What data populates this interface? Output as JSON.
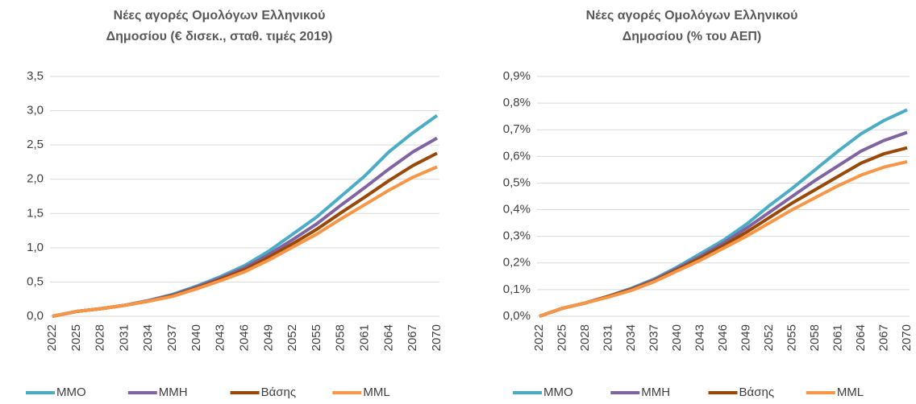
{
  "chart_data": [
    {
      "type": "line",
      "title": [
        "Νέες αγορές Ομολόγων Ελληνικού",
        "Δημοσίου (€ δισεκ., σταθ. τιμές 2019)"
      ],
      "categories": [
        "2022",
        "2025",
        "2028",
        "2031",
        "2034",
        "2037",
        "2040",
        "2043",
        "2046",
        "2049",
        "2052",
        "2055",
        "2058",
        "2061",
        "2064",
        "2067",
        "2070"
      ],
      "ylim": [
        0,
        3.5
      ],
      "yticks": [
        {
          "value": 0,
          "label": "0,0"
        },
        {
          "value": 0.5,
          "label": "0,5"
        },
        {
          "value": 1,
          "label": "1,0"
        },
        {
          "value": 1.5,
          "label": "1,5"
        },
        {
          "value": 2,
          "label": "2,0"
        },
        {
          "value": 2.5,
          "label": "2,5"
        },
        {
          "value": 3,
          "label": "3,0"
        },
        {
          "value": 3.5,
          "label": "3,5"
        }
      ],
      "grid": true,
      "legend": "bottom",
      "series": [
        {
          "name": "MMO",
          "color": "#4bacc6",
          "values": [
            0,
            0.07,
            0.11,
            0.16,
            0.23,
            0.32,
            0.44,
            0.58,
            0.74,
            0.95,
            1.2,
            1.45,
            1.75,
            2.05,
            2.4,
            2.68,
            2.93
          ]
        },
        {
          "name": "MMH",
          "color": "#8064a2",
          "values": [
            0,
            0.07,
            0.11,
            0.16,
            0.23,
            0.31,
            0.43,
            0.56,
            0.71,
            0.9,
            1.12,
            1.35,
            1.62,
            1.88,
            2.15,
            2.4,
            2.6
          ]
        },
        {
          "name": "Βάσης",
          "color": "#984807",
          "values": [
            0,
            0.07,
            0.11,
            0.16,
            0.22,
            0.3,
            0.41,
            0.54,
            0.68,
            0.86,
            1.06,
            1.27,
            1.51,
            1.74,
            1.98,
            2.2,
            2.38
          ]
        },
        {
          "name": "MML",
          "color": "#f79646",
          "values": [
            0,
            0.07,
            0.11,
            0.16,
            0.22,
            0.29,
            0.4,
            0.52,
            0.65,
            0.82,
            1.01,
            1.2,
            1.42,
            1.63,
            1.84,
            2.03,
            2.18
          ]
        }
      ]
    },
    {
      "type": "line",
      "title": [
        "Νέες αγορές Ομολόγων Ελληνικού",
        "Δημοσίου (% του ΑΕΠ)"
      ],
      "categories": [
        "2022",
        "2025",
        "2028",
        "2031",
        "2034",
        "2037",
        "2040",
        "2043",
        "2046",
        "2049",
        "2052",
        "2055",
        "2058",
        "2061",
        "2064",
        "2067",
        "2070"
      ],
      "ylim": [
        0,
        0.9
      ],
      "yticks": [
        {
          "value": 0,
          "label": "0,0%"
        },
        {
          "value": 0.1,
          "label": "0,1%"
        },
        {
          "value": 0.2,
          "label": "0,2%"
        },
        {
          "value": 0.3,
          "label": "0,3%"
        },
        {
          "value": 0.4,
          "label": "0,4%"
        },
        {
          "value": 0.5,
          "label": "0,5%"
        },
        {
          "value": 0.6,
          "label": "0,6%"
        },
        {
          "value": 0.7,
          "label": "0,7%"
        },
        {
          "value": 0.8,
          "label": "0,8%"
        },
        {
          "value": 0.9,
          "label": "0,9%"
        }
      ],
      "grid": true,
      "legend": "bottom",
      "series": [
        {
          "name": "MMO",
          "color": "#4bacc6",
          "values": [
            0,
            0.03,
            0.05,
            0.075,
            0.105,
            0.14,
            0.185,
            0.235,
            0.285,
            0.345,
            0.415,
            0.48,
            0.55,
            0.62,
            0.685,
            0.735,
            0.775
          ]
        },
        {
          "name": "MMH",
          "color": "#8064a2",
          "values": [
            0,
            0.03,
            0.05,
            0.075,
            0.103,
            0.137,
            0.18,
            0.225,
            0.275,
            0.33,
            0.39,
            0.45,
            0.51,
            0.565,
            0.62,
            0.66,
            0.69
          ]
        },
        {
          "name": "Βάσης",
          "color": "#984807",
          "values": [
            0,
            0.03,
            0.05,
            0.075,
            0.1,
            0.133,
            0.175,
            0.218,
            0.265,
            0.315,
            0.37,
            0.425,
            0.475,
            0.525,
            0.575,
            0.61,
            0.632
          ]
        },
        {
          "name": "MML",
          "color": "#f79646",
          "values": [
            0,
            0.03,
            0.05,
            0.072,
            0.097,
            0.13,
            0.17,
            0.21,
            0.255,
            0.3,
            0.35,
            0.4,
            0.445,
            0.49,
            0.53,
            0.56,
            0.58
          ]
        }
      ]
    }
  ]
}
